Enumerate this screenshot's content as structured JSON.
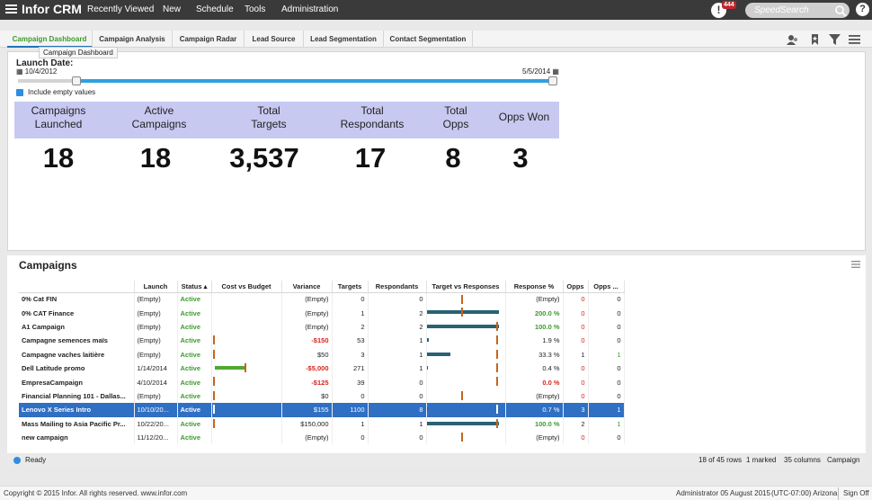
{
  "app": {
    "title": "Infor CRM",
    "alert_count": "444",
    "alert_glyph": "!",
    "help_glyph": "?"
  },
  "nav": [
    "Recently Viewed",
    "New",
    "Schedule",
    "Tools",
    "Administration"
  ],
  "search": {
    "placeholder": "SpeedSearch"
  },
  "tabs": [
    "Campaign Dashboard",
    "Campaign Analysis",
    "Campaign Radar",
    "Lead Source",
    "Lead Segmentation",
    "Contact Segmentation"
  ],
  "tooltip": "Campaign Dashboard",
  "dashboard": {
    "launch_label": "Launch Date:",
    "start_date": "10/4/2012",
    "end_date": "5/5/2014",
    "include_empty": "Include empty values",
    "slider_range": [
      0.11,
      1.0
    ],
    "kpis": [
      {
        "title": "Campaigns Launched",
        "value": "18"
      },
      {
        "title": "Active Campaigns",
        "value": "18"
      },
      {
        "title": "Total Targets",
        "value": "3,537"
      },
      {
        "title": "Total Respondants",
        "value": "17"
      },
      {
        "title": "Total Opps",
        "value": "8"
      },
      {
        "title": "Opps Won",
        "value": "3"
      }
    ]
  },
  "campaigns": {
    "title": "Campaigns",
    "columns": [
      "Launch",
      "Status ▴",
      "Cost vs Budget",
      "Variance",
      "Targets",
      "Respondants",
      "Target vs Responses",
      "Response %",
      "Opps",
      "Opps ..."
    ],
    "rows": [
      {
        "name": "0% Cat FIN",
        "launch": "(Empty)",
        "status": "Active",
        "cost": 0,
        "variance": "(Empty)",
        "targets": "0",
        "resp": "0",
        "tvr_bar": 0,
        "tvr_mark": 0.48,
        "pct": "(Empty)",
        "opps": "0",
        "won": "0"
      },
      {
        "name": "0% CAT Finance",
        "launch": "(Empty)",
        "status": "Active",
        "cost": 0,
        "variance": "(Empty)",
        "targets": "1",
        "resp": "2",
        "tvr_bar": 1.0,
        "tvr_mark": 0.48,
        "pct": "200.0 %",
        "opps": "0",
        "won": "0"
      },
      {
        "name": "A1 Campaign",
        "launch": "(Empty)",
        "status": "Active",
        "cost": 0,
        "variance": "(Empty)",
        "targets": "2",
        "resp": "2",
        "tvr_bar": 1.0,
        "tvr_mark": 0.96,
        "pct": "100.0 %",
        "opps": "0",
        "won": "0"
      },
      {
        "name": "Campagne semences maïs",
        "launch": "(Empty)",
        "status": "Active",
        "cost": 0.02,
        "variance": "-$150",
        "targets": "53",
        "resp": "1",
        "tvr_bar": 0.02,
        "tvr_mark": 0.96,
        "pct": "1.9 %",
        "opps": "0",
        "won": "0"
      },
      {
        "name": "Campagne vaches laitière",
        "launch": "(Empty)",
        "status": "Active",
        "cost": 0.02,
        "variance": "$50",
        "targets": "3",
        "resp": "1",
        "tvr_bar": 0.33,
        "tvr_mark": 0.96,
        "pct": "33.3 %",
        "opps": "1",
        "won": "1"
      },
      {
        "name": "Dell Latitude promo",
        "launch": "1/14/2014",
        "status": "Active",
        "cost": 0.45,
        "variance": "-$5,000",
        "targets": "271",
        "resp": "1",
        "tvr_bar": 0.01,
        "tvr_mark": 0.96,
        "pct": "0.4 %",
        "opps": "0",
        "won": "0"
      },
      {
        "name": "EmpresaCampaign",
        "launch": "4/10/2014",
        "status": "Active",
        "cost": 0.02,
        "variance": "-$125",
        "targets": "39",
        "resp": "0",
        "tvr_bar": 0,
        "tvr_mark": 0.96,
        "pct": "0.0 %",
        "opps": "0",
        "won": "0"
      },
      {
        "name": "Financial Planning 101 - Dallas...",
        "launch": "(Empty)",
        "status": "Active",
        "cost": 0.02,
        "variance": "$0",
        "targets": "0",
        "resp": "0",
        "tvr_bar": 0,
        "tvr_mark": 0.48,
        "pct": "(Empty)",
        "opps": "0",
        "won": "0"
      },
      {
        "name": "Lenovo X Series Intro",
        "launch": "10/10/20...",
        "status": "Active",
        "cost": 0.02,
        "variance": "$155",
        "targets": "1100",
        "resp": "8",
        "tvr_bar": 0.01,
        "tvr_mark": 0.96,
        "pct": "0.7 %",
        "opps": "3",
        "won": "1",
        "selected": true
      },
      {
        "name": "Mass Mailing to Asia Pacific Pr...",
        "launch": "10/22/20...",
        "status": "Active",
        "cost": 0.02,
        "variance": "$150,000",
        "targets": "1",
        "resp": "1",
        "tvr_bar": 1.0,
        "tvr_mark": 0.96,
        "pct": "100.0 %",
        "opps": "2",
        "won": "1"
      },
      {
        "name": "new campaign",
        "launch": "11/12/20...",
        "status": "Active",
        "cost": 0,
        "variance": "(Empty)",
        "targets": "0",
        "resp": "0",
        "tvr_bar": 0,
        "tvr_mark": 0.48,
        "pct": "(Empty)",
        "opps": "0",
        "won": "0"
      }
    ]
  },
  "status": {
    "ready": "Ready",
    "rows": "18 of 45 rows",
    "marked": "1 marked",
    "columns": "35 columns",
    "entity": "Campaign"
  },
  "footer": {
    "copyright": "Copyright © 2015 Infor. All rights reserved. www.infor.com",
    "user": "Administrator  05 August 2015",
    "tz": "(UTC-07:00) Arizona",
    "signoff": "Sign Off"
  },
  "colors": {
    "topbar": "#3a3a3a",
    "kpi_band": "#c8c9f1",
    "accent": "#2f8ee0",
    "selected_row": "#2f6fc4",
    "bar": "#2a6174",
    "marker": "#c5651e",
    "positive": "#3b9b2c",
    "negative": "#d6241d"
  }
}
